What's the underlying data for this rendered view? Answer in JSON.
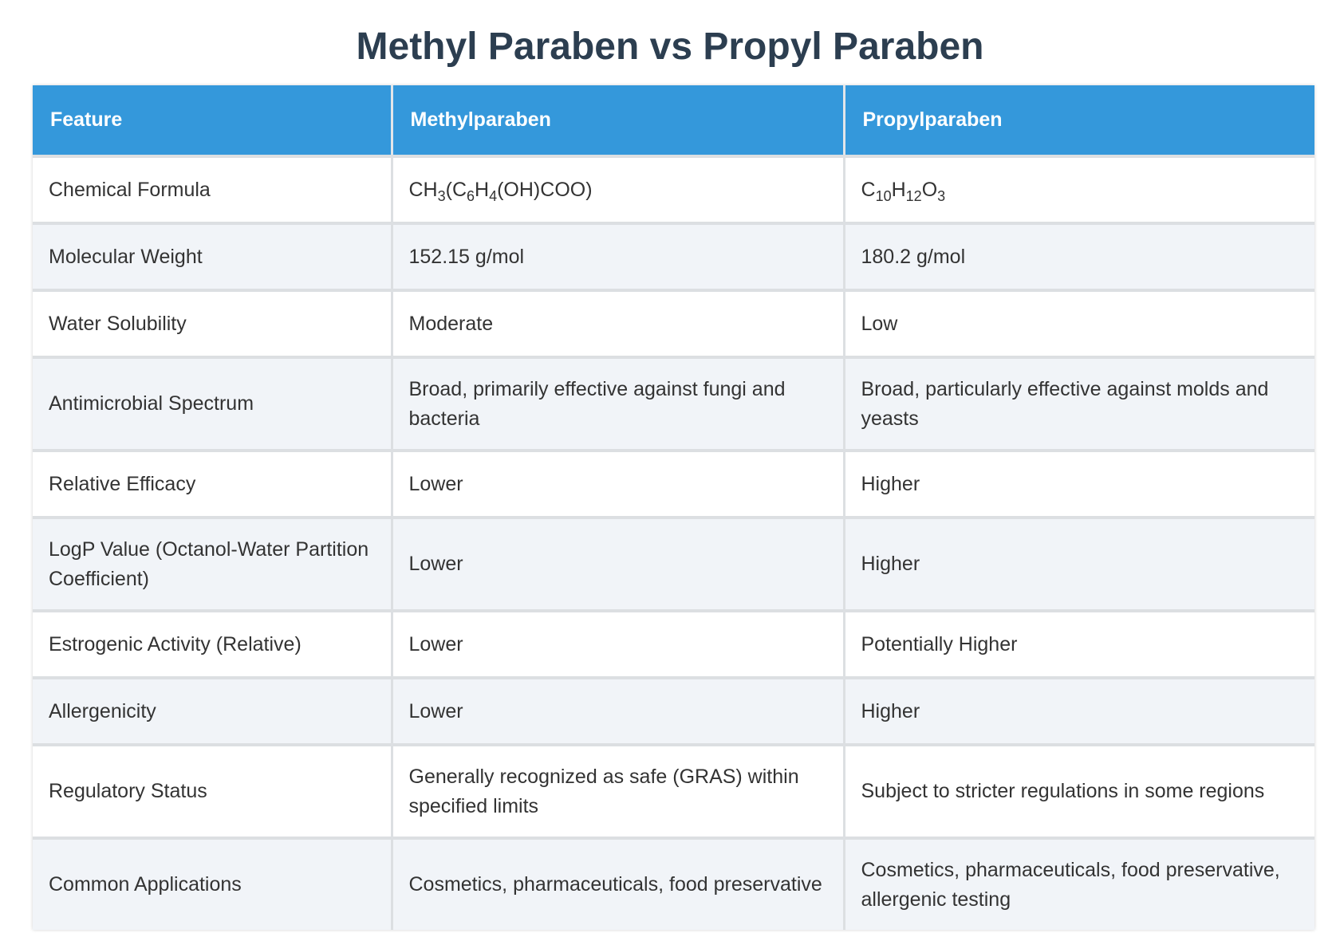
{
  "title": "Methyl Paraben vs Propyl Paraben",
  "table": {
    "headers": [
      "Feature",
      "Methylparaben",
      "Propylparaben"
    ],
    "rows": [
      {
        "feature": "Chemical Formula",
        "methyl": [
          {
            "t": "CH"
          },
          {
            "sub": "3"
          },
          {
            "t": "(C"
          },
          {
            "sub": "6"
          },
          {
            "t": "H"
          },
          {
            "sub": "4"
          },
          {
            "t": "(OH)COO)"
          }
        ],
        "propyl": [
          {
            "t": "C"
          },
          {
            "sub": "10"
          },
          {
            "t": "H"
          },
          {
            "sub": "12"
          },
          {
            "t": "O"
          },
          {
            "sub": "3"
          }
        ]
      },
      {
        "feature": "Molecular Weight",
        "methyl": "152.15 g/mol",
        "propyl": "180.2 g/mol"
      },
      {
        "feature": "Water Solubility",
        "methyl": "Moderate",
        "propyl": "Low"
      },
      {
        "feature": "Antimicrobial Spectrum",
        "methyl": "Broad, primarily effective against fungi and bacteria",
        "propyl": "Broad, particularly effective against molds and yeasts"
      },
      {
        "feature": "Relative Efficacy",
        "methyl": "Lower",
        "propyl": "Higher"
      },
      {
        "feature": "LogP Value (Octanol-Water Partition Coefficient)",
        "methyl": "Lower",
        "propyl": "Higher"
      },
      {
        "feature": "Estrogenic Activity (Relative)",
        "methyl": "Lower",
        "propyl": "Potentially Higher"
      },
      {
        "feature": "Allergenicity",
        "methyl": "Lower",
        "propyl": "Higher"
      },
      {
        "feature": "Regulatory Status",
        "methyl": "Generally recognized as safe (GRAS) within specified limits",
        "propyl": "Subject to stricter regulations in some regions"
      },
      {
        "feature": "Common Applications",
        "methyl": "Cosmetics, pharmaceuticals, food preservative",
        "propyl": "Cosmetics, pharmaceuticals, food preservative, allergenic testing"
      }
    ]
  },
  "colors": {
    "title": "#2c3e50",
    "header_bg": "#3498db",
    "header_text": "#ffffff",
    "row_alt_bg": "#f1f4f8",
    "cell_text": "#333333"
  }
}
